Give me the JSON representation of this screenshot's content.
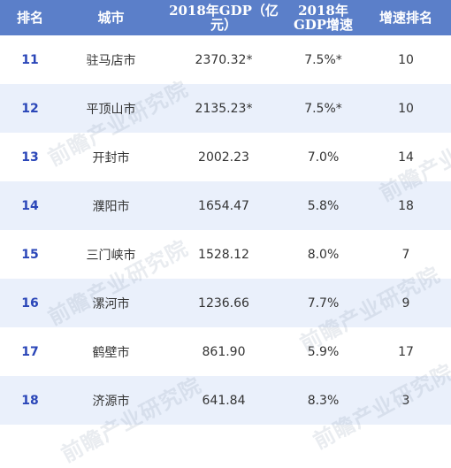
{
  "headers": [
    "排名",
    "城市",
    "2018年GDP（亿元）",
    "2018年\nGDP增速",
    "增速排名"
  ],
  "rows": [
    {
      "rank": "11",
      "city": "驻马店市",
      "gdp": "2370.32*",
      "growth": "7.5%*",
      "growth_rank": "10"
    },
    {
      "rank": "12",
      "city": "平顶山市",
      "gdp": "2135.23*",
      "growth": "7.5%*",
      "growth_rank": "10"
    },
    {
      "rank": "13",
      "city": "开封市",
      "gdp": "2002.23",
      "growth": "7.0%",
      "growth_rank": "14"
    },
    {
      "rank": "14",
      "city": "濮阳市",
      "gdp": "1654.47",
      "growth": "5.8%",
      "growth_rank": "18"
    },
    {
      "rank": "15",
      "city": "三门峡市",
      "gdp": "1528.12",
      "growth": "8.0%",
      "growth_rank": "7"
    },
    {
      "rank": "16",
      "city": "漯河市",
      "gdp": "1236.66",
      "growth": "7.7%",
      "growth_rank": "9"
    },
    {
      "rank": "17",
      "city": "鹤壁市",
      "gdp": "861.90",
      "growth": "5.9%",
      "growth_rank": "17"
    },
    {
      "rank": "18",
      "city": "济源市",
      "gdp": "641.84",
      "growth": "8.3%",
      "growth_rank": "3"
    }
  ],
  "watermark": "前瞻产业研究院",
  "colors": {
    "header_bg": "#5b7fc9",
    "row_alt_bg": "#eaf0fb",
    "rank_text": "#2a46b8"
  }
}
